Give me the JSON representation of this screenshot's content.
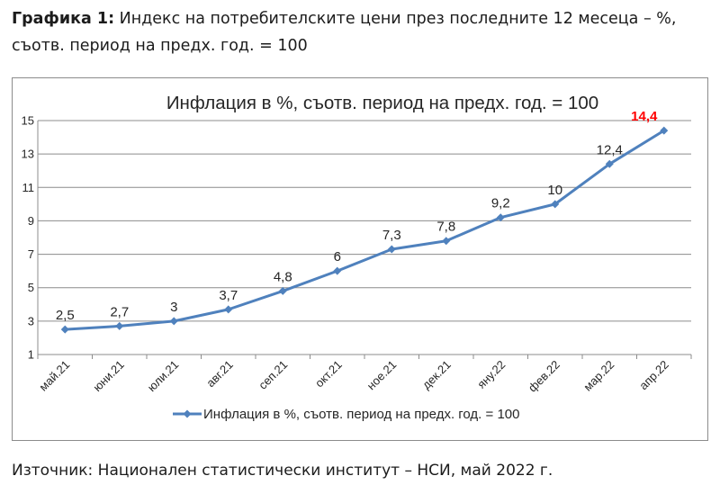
{
  "heading": {
    "label": "Графика 1:",
    "text": "Индекс на потребителските цени през последните 12 месеца – %, съотв. период на предх. год. = 100"
  },
  "source": "Източник: Национален статистически институт – НСИ, май 2022 г.",
  "colors": {
    "series": "#4f81bd",
    "highlight_label": "#ff0000",
    "grid": "#8c8c8c"
  },
  "chart_data": {
    "type": "line",
    "title": "Инфлация в %, съотв. период на предх. год. = 100",
    "categories": [
      "май.21",
      "юни.21",
      "юли.21",
      "авг.21",
      "сеп.21",
      "окт.21",
      "ное.21",
      "дек.21",
      "яну.22",
      "фев.22",
      "мар.22",
      "апр.22"
    ],
    "series": [
      {
        "name": "Инфлация в %, съотв. период на предх. год. = 100",
        "values": [
          2.5,
          2.7,
          3,
          3.7,
          4.8,
          6,
          7.3,
          7.8,
          9.2,
          10,
          12.4,
          14.4
        ],
        "data_labels": [
          "2,5",
          "2,7",
          "3",
          "3,7",
          "4,8",
          "6",
          "7,3",
          "7,8",
          "9,2",
          "10",
          "12,4",
          "14,4"
        ]
      }
    ],
    "ylim": [
      1,
      15
    ],
    "yticks": [
      "1",
      "3",
      "5",
      "7",
      "9",
      "11",
      "13",
      "15"
    ],
    "grid": true,
    "legend": "bottom",
    "highlight_last_label": true
  }
}
